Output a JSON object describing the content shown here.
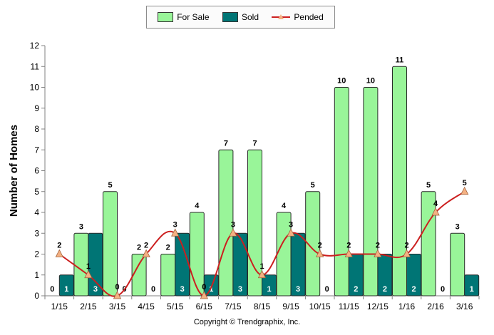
{
  "colors": {
    "for_sale": "#99f599",
    "sold": "#007575",
    "pended_line": "#cc1f1f",
    "pended_marker": "#f4b183"
  },
  "legend": {
    "for_sale": "For Sale",
    "sold": "Sold",
    "pended": "Pended"
  },
  "footer": "Copyright © Trendgraphix, Inc.",
  "chart_data": {
    "type": "bar",
    "title": "",
    "xlabel": "",
    "ylabel": "Number of Homes",
    "ylim": [
      0,
      12
    ],
    "yticks": [
      0,
      1,
      2,
      3,
      4,
      5,
      6,
      7,
      8,
      9,
      10,
      11,
      12
    ],
    "grid": false,
    "legend_position": "top",
    "categories": [
      "1/15",
      "2/15",
      "3/15",
      "4/15",
      "5/15",
      "6/15",
      "7/15",
      "8/15",
      "9/15",
      "10/15",
      "11/15",
      "12/15",
      "1/16",
      "2/16",
      "3/16"
    ],
    "series": [
      {
        "name": "For Sale",
        "type": "bar",
        "values": [
          0,
          3,
          5,
          2,
          2,
          4,
          7,
          7,
          4,
          5,
          10,
          10,
          11,
          5,
          3
        ]
      },
      {
        "name": "Sold",
        "type": "bar",
        "values": [
          1,
          3,
          0,
          0,
          3,
          1,
          3,
          1,
          3,
          0,
          2,
          2,
          2,
          0,
          1
        ]
      },
      {
        "name": "Pended",
        "type": "line",
        "values": [
          2,
          1,
          0,
          2,
          3,
          0,
          3,
          1,
          3,
          2,
          2,
          2,
          2,
          4,
          5
        ]
      }
    ]
  }
}
